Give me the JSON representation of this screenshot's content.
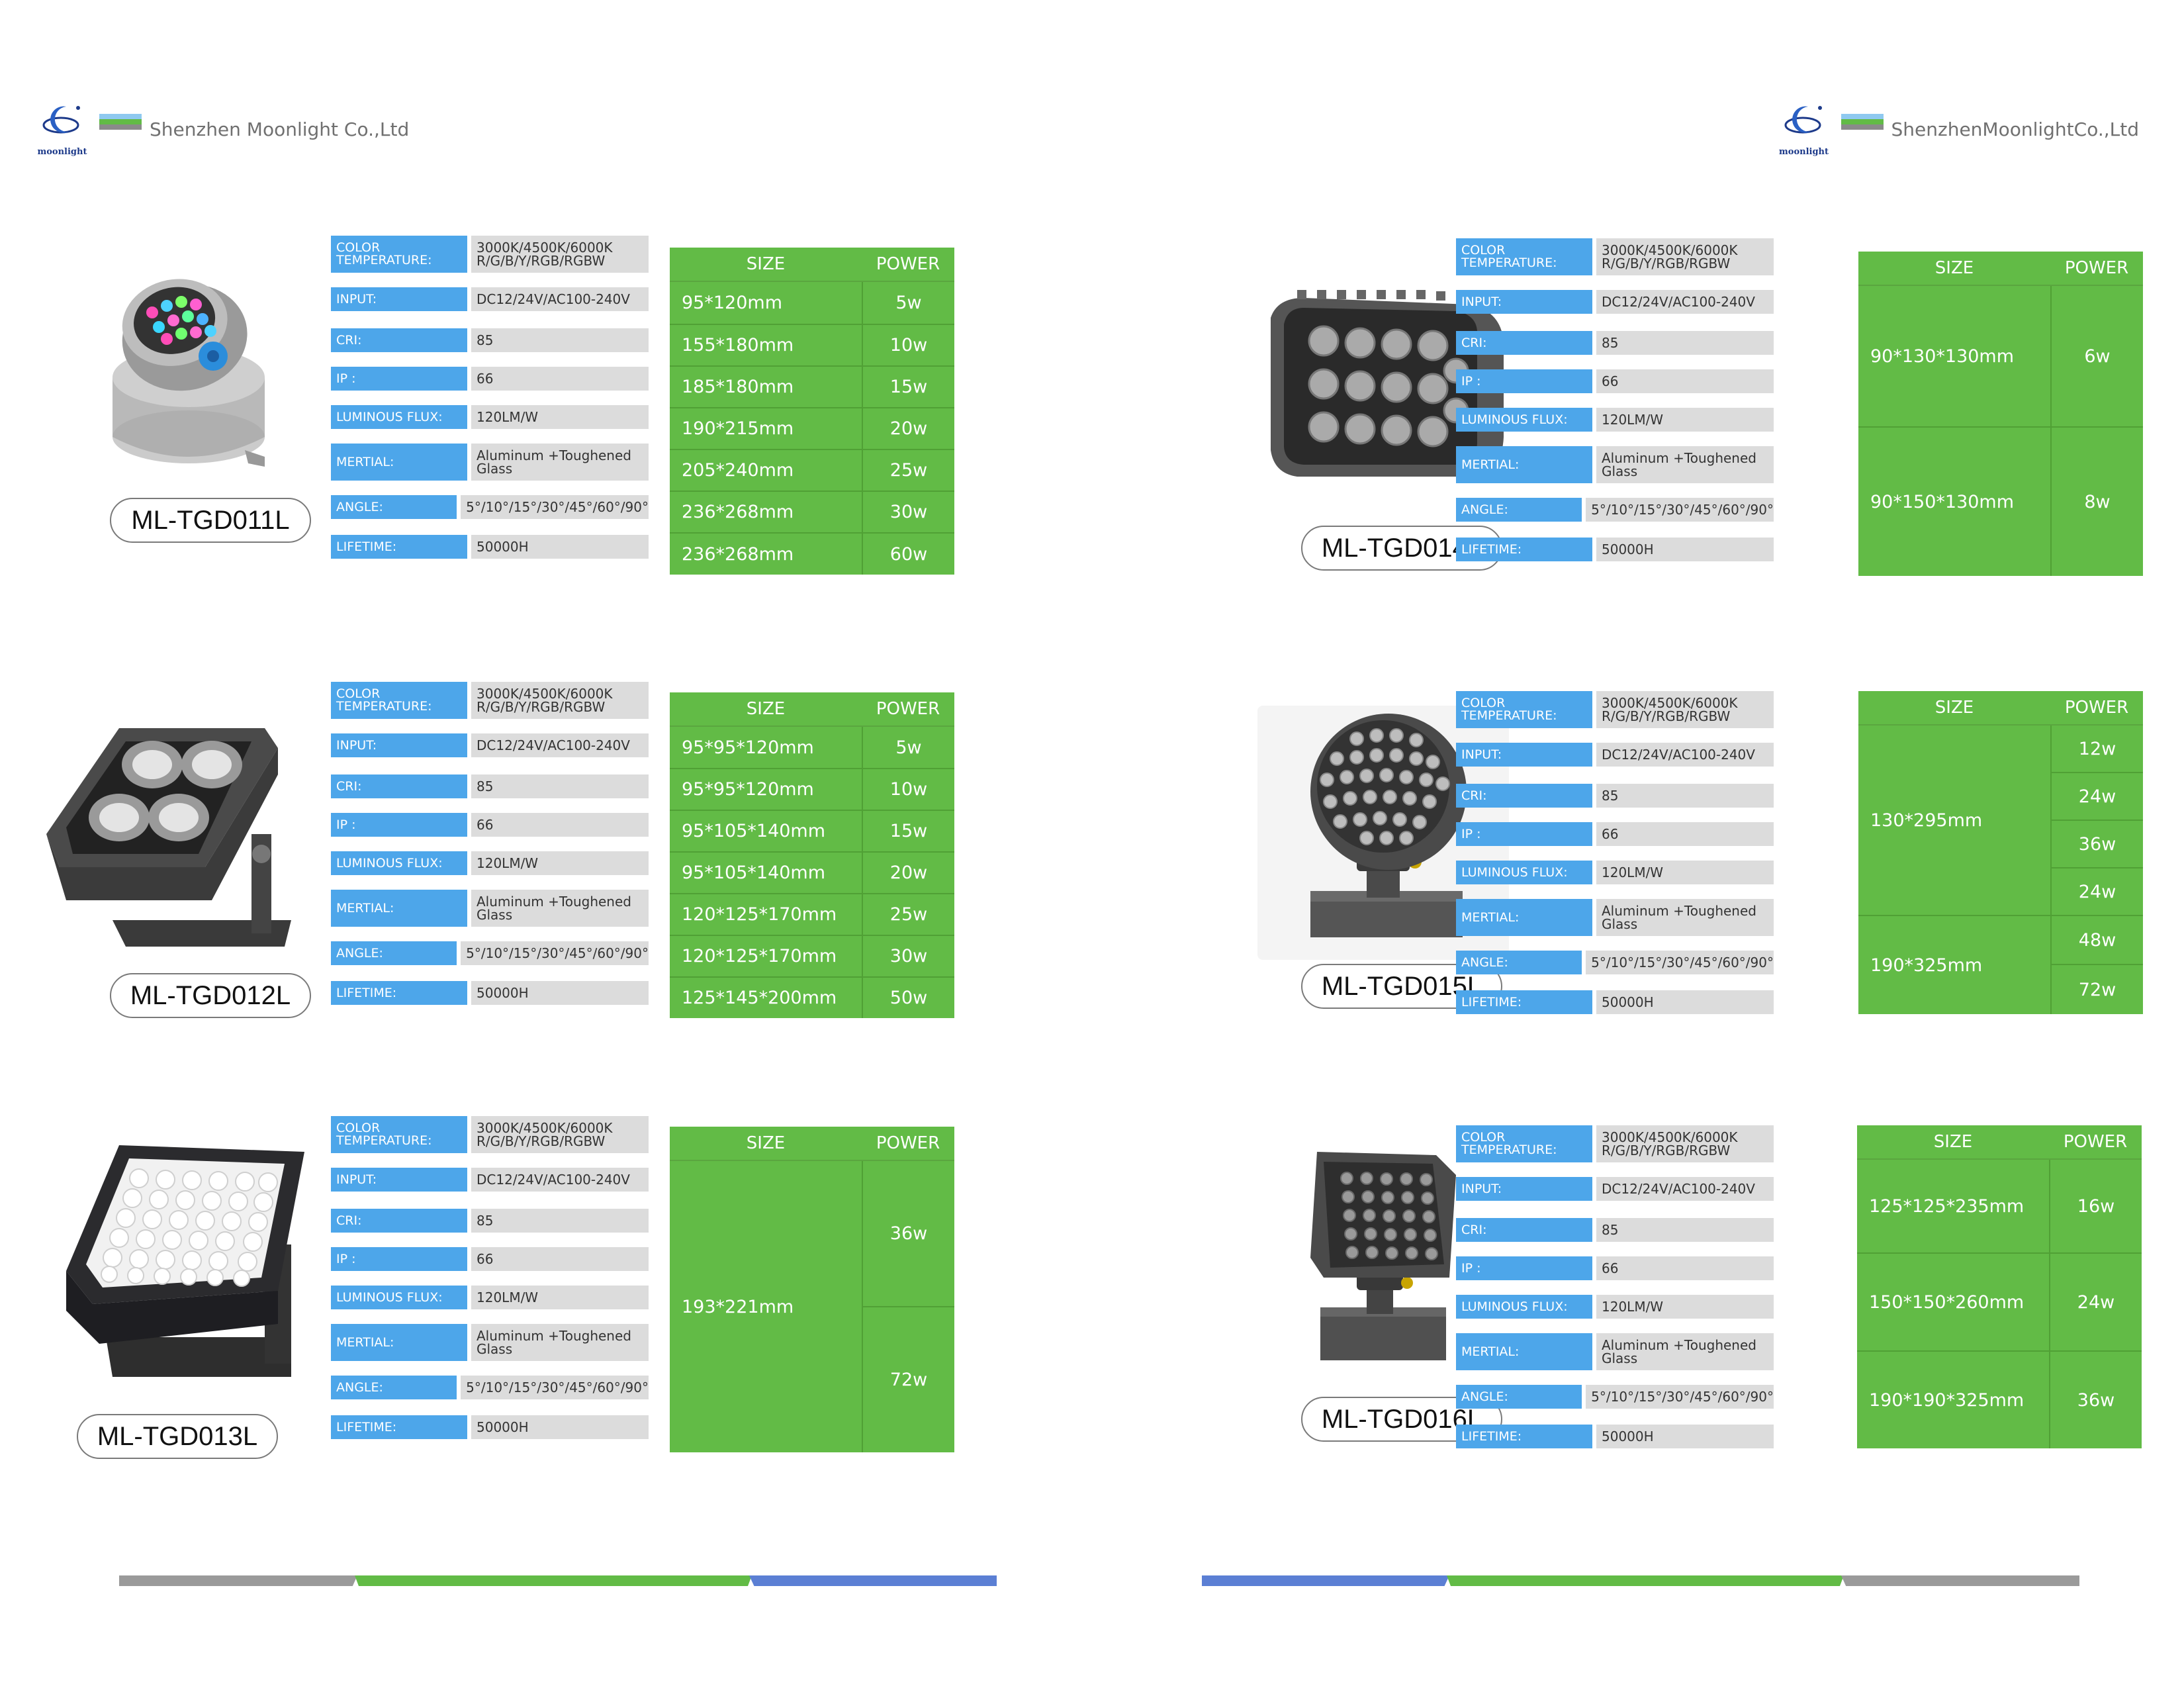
{
  "header": {
    "company_left": "Shenzhen Moonlight Co.,Ltd",
    "company_right": "ShenzhenMoonlightCo.,Ltd",
    "logo_text": "moonlight"
  },
  "colors": {
    "spec_label_bg": "#4da6ea",
    "spec_value_bg": "#dcdcdc",
    "green": "#62bb46",
    "gray": "#9a9a9a",
    "blue": "#5b7fd4"
  },
  "table_headers": {
    "size": "SIZE",
    "power": "POWER"
  },
  "spec_labels": [
    "COLOR TEMPERATURE:",
    "INPUT:",
    "CRI:",
    "IP :",
    "LUMINOUS FLUX:",
    "MERTIAL:",
    "ANGLE:",
    "LIFETIME:"
  ],
  "spec_values": [
    "3000K/4500K/6000K R/G/B/Y/RGB/RGBW",
    "DC12/24V/AC100-240V",
    "85",
    "66",
    "120LM/W",
    "Aluminum +Toughened Glass",
    "5°/10°/15°/30°/45°/60°/90°",
    "50000H"
  ],
  "products": [
    {
      "model": "ML-TGD011L",
      "icon": "uplight-rgb-icon",
      "sizes": [
        "95*120mm",
        "155*180mm",
        "185*180mm",
        "190*215mm",
        "205*240mm",
        "236*268mm",
        "236*268mm"
      ],
      "powers": [
        "5w",
        "10w",
        "15w",
        "20w",
        "25w",
        "30w",
        "60w"
      ]
    },
    {
      "model": "ML-TGD012L",
      "icon": "square-floodlight-4lens-icon",
      "sizes": [
        "95*95*120mm",
        "95*95*120mm",
        "95*105*140mm",
        "95*105*140mm",
        "120*125*170mm",
        "120*125*170mm",
        "125*145*200mm"
      ],
      "powers": [
        "5w",
        "10w",
        "15w",
        "20w",
        "25w",
        "30w",
        "50w"
      ]
    },
    {
      "model": "ML-TGD013L",
      "icon": "square-floodlight-36led-icon",
      "sizes": [
        "193*221mm"
      ],
      "powers": [
        "36w",
        "72w"
      ]
    },
    {
      "model": "ML-TGD014L",
      "icon": "rectangular-floodlight-icon",
      "sizes": [
        "90*130*130mm",
        "90*150*130mm"
      ],
      "powers": [
        "6w",
        "8w"
      ]
    },
    {
      "model": "ML-TGD015L",
      "icon": "round-floodlight-icon",
      "sizes": [
        "130*295mm",
        "190*325mm"
      ],
      "powers": [
        "12w",
        "24w",
        "36w",
        "24w",
        "48w",
        "72w"
      ]
    },
    {
      "model": "ML-TGD016L",
      "icon": "square-floodlight-base-icon",
      "sizes": [
        "125*125*235mm",
        "150*150*260mm",
        "190*190*325mm"
      ],
      "powers": [
        "16w",
        "24w",
        "36w"
      ]
    }
  ]
}
